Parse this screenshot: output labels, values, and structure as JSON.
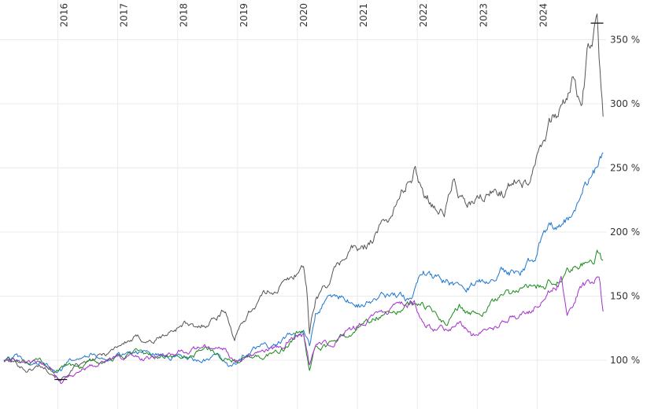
{
  "chart_data": {
    "type": "line",
    "title": "",
    "xlabel": "",
    "ylabel": "",
    "x_unit": "year",
    "y_unit": "%",
    "xlim": [
      2015.1,
      2025.15
    ],
    "ylim": [
      62,
      381
    ],
    "grid": true,
    "y_axis_position": "right",
    "x_tick_labels_position": "top-rotated",
    "x_ticks": [
      {
        "value": 2016,
        "label": "2016"
      },
      {
        "value": 2017,
        "label": "2017"
      },
      {
        "value": 2018,
        "label": "2018"
      },
      {
        "value": 2019,
        "label": "2019"
      },
      {
        "value": 2020,
        "label": "2020"
      },
      {
        "value": 2021,
        "label": "2021"
      },
      {
        "value": 2022,
        "label": "2022"
      },
      {
        "value": 2023,
        "label": "2023"
      },
      {
        "value": 2024,
        "label": "2024"
      }
    ],
    "y_ticks": [
      {
        "value": 100,
        "label": "100 %"
      },
      {
        "value": 150,
        "label": "150 %"
      },
      {
        "value": 200,
        "label": "200 %"
      },
      {
        "value": 250,
        "label": "250 %"
      },
      {
        "value": 300,
        "label": "300 %"
      },
      {
        "value": 350,
        "label": "350 %"
      }
    ],
    "series": [
      {
        "color": "#555555",
        "x": [
          2015.1,
          2015.3,
          2015.5,
          2015.7,
          2015.9,
          2016.05,
          2016.3,
          2016.6,
          2016.9,
          2017.0,
          2017.3,
          2017.6,
          2017.9,
          2018.1,
          2018.3,
          2018.6,
          2018.8,
          2018.95,
          2019.1,
          2019.4,
          2019.7,
          2019.9,
          2020.1,
          2020.15,
          2020.2,
          2020.3,
          2020.5,
          2020.7,
          2020.9,
          2021.1,
          2021.3,
          2021.5,
          2021.7,
          2021.85,
          2021.95,
          2022.1,
          2022.3,
          2022.45,
          2022.6,
          2022.8,
          2022.95,
          2023.1,
          2023.3,
          2023.5,
          2023.7,
          2023.85,
          2024.0,
          2024.15,
          2024.3,
          2024.45,
          2024.6,
          2024.75,
          2024.85,
          2024.95,
          2025.0,
          2025.05,
          2025.1
        ],
        "y": [
          100,
          98,
          92,
          96,
          92,
          85,
          94,
          100,
          108,
          112,
          117,
          115,
          122,
          130,
          123,
          133,
          140,
          116,
          132,
          150,
          158,
          163,
          175,
          158,
          122,
          148,
          160,
          175,
          188,
          185,
          200,
          210,
          225,
          240,
          248,
          233,
          222,
          215,
          240,
          220,
          222,
          226,
          232,
          233,
          245,
          240,
          265,
          282,
          290,
          300,
          318,
          300,
          340,
          355,
          363,
          320,
          290
        ]
      },
      {
        "color": "#1f77d0",
        "x": [
          2015.1,
          2015.3,
          2015.5,
          2015.7,
          2015.9,
          2016.05,
          2016.3,
          2016.6,
          2016.9,
          2017.1,
          2017.3,
          2017.6,
          2017.9,
          2018.2,
          2018.5,
          2018.7,
          2018.9,
          2019.1,
          2019.4,
          2019.6,
          2019.9,
          2020.1,
          2020.2,
          2020.3,
          2020.5,
          2020.7,
          2020.9,
          2021.1,
          2021.4,
          2021.7,
          2021.9,
          2022.1,
          2022.2,
          2022.4,
          2022.6,
          2022.8,
          2023.0,
          2023.2,
          2023.4,
          2023.6,
          2023.8,
          2024.0,
          2024.1,
          2024.2,
          2024.4,
          2024.6,
          2024.8,
          2024.95,
          2025.05,
          2025.1
        ],
        "y": [
          100,
          102,
          96,
          98,
          95,
          93,
          104,
          106,
          100,
          104,
          108,
          105,
          103,
          100,
          100,
          102,
          93,
          104,
          110,
          112,
          119,
          123,
          110,
          135,
          150,
          150,
          145,
          143,
          150,
          148,
          148,
          170,
          165,
          163,
          160,
          158,
          160,
          165,
          170,
          167,
          172,
          182,
          200,
          205,
          210,
          215,
          233,
          245,
          258,
          262
        ]
      },
      {
        "color": "#1a8c1a",
        "x": [
          2015.1,
          2015.3,
          2015.5,
          2015.7,
          2015.9,
          2016.1,
          2016.4,
          2016.7,
          2017.0,
          2017.3,
          2017.6,
          2017.9,
          2018.2,
          2018.5,
          2018.7,
          2018.9,
          2019.2,
          2019.5,
          2019.8,
          2020.0,
          2020.1,
          2020.2,
          2020.3,
          2020.5,
          2020.7,
          2020.9,
          2021.1,
          2021.3,
          2021.6,
          2021.9,
          2022.1,
          2022.3,
          2022.5,
          2022.7,
          2022.9,
          2023.1,
          2023.3,
          2023.5,
          2023.7,
          2023.9,
          2024.1,
          2024.3,
          2024.5,
          2024.7,
          2024.9,
          2025.0,
          2025.05,
          2025.1
        ],
        "y": [
          100,
          101,
          97,
          98,
          92,
          95,
          96,
          96,
          102,
          106,
          103,
          103,
          102,
          110,
          105,
          100,
          102,
          104,
          110,
          119,
          119,
          90,
          110,
          110,
          118,
          120,
          130,
          135,
          140,
          145,
          143,
          135,
          130,
          142,
          136,
          140,
          145,
          150,
          152,
          155,
          160,
          163,
          168,
          172,
          175,
          183,
          185,
          178
        ]
      },
      {
        "color": "#a52fd0",
        "x": [
          2015.1,
          2015.3,
          2015.5,
          2015.7,
          2015.9,
          2016.05,
          2016.2,
          2016.4,
          2016.7,
          2017.0,
          2017.3,
          2017.6,
          2017.9,
          2018.2,
          2018.5,
          2018.8,
          2018.95,
          2019.2,
          2019.5,
          2019.8,
          2020.05,
          2020.1,
          2020.2,
          2020.3,
          2020.5,
          2020.8,
          2021.0,
          2021.2,
          2021.5,
          2021.8,
          2021.95,
          2022.1,
          2022.3,
          2022.5,
          2022.7,
          2022.9,
          2023.1,
          2023.3,
          2023.5,
          2023.7,
          2023.9,
          2024.1,
          2024.3,
          2024.4,
          2024.5,
          2024.7,
          2024.9,
          2025.0,
          2025.05,
          2025.1
        ],
        "y": [
          100,
          100,
          98,
          97,
          95,
          83,
          88,
          93,
          98,
          103,
          103,
          101,
          106,
          108,
          110,
          108,
          100,
          105,
          107,
          113,
          120,
          120,
          95,
          110,
          113,
          120,
          125,
          132,
          138,
          142,
          145,
          130,
          125,
          123,
          132,
          120,
          125,
          127,
          133,
          135,
          140,
          150,
          158,
          162,
          137,
          155,
          160,
          165,
          160,
          138
        ]
      }
    ]
  }
}
